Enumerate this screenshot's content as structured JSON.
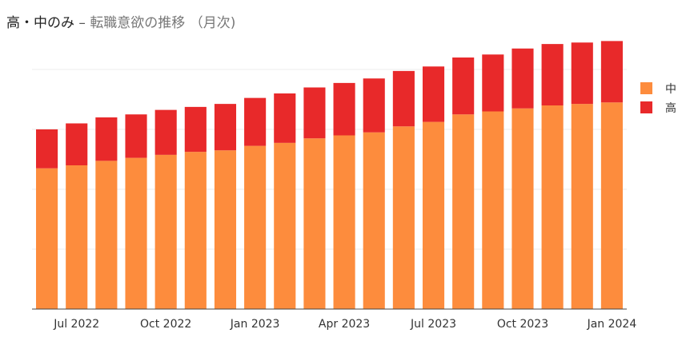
{
  "title": {
    "main": "高・中のみ",
    "separator": "–",
    "subtitle": "転職意欲の推移 （月次)"
  },
  "chart_data": {
    "type": "bar",
    "stacked": true,
    "categories": [
      "2022-06",
      "2022-07",
      "2022-08",
      "2022-09",
      "2022-10",
      "2022-11",
      "2022-12",
      "2023-01",
      "2023-02",
      "2023-03",
      "2023-04",
      "2023-05",
      "2023-06",
      "2023-07",
      "2023-08",
      "2023-09",
      "2023-10",
      "2023-11",
      "2023-12",
      "2024-01"
    ],
    "x_tick_labels": [
      {
        "index": 1,
        "label": "Jul 2022"
      },
      {
        "index": 4,
        "label": "Oct 2022"
      },
      {
        "index": 7,
        "label": "Jan 2023"
      },
      {
        "index": 10,
        "label": "Apr 2023"
      },
      {
        "index": 13,
        "label": "Jul 2023"
      },
      {
        "index": 16,
        "label": "Oct 2023"
      },
      {
        "index": 19,
        "label": "Jan 2024"
      }
    ],
    "series": [
      {
        "name": "中",
        "color": "#fd8c3d",
        "values": [
          47,
          48,
          49.5,
          50.5,
          51.5,
          52.5,
          53,
          54.5,
          55.5,
          57,
          58,
          59,
          61,
          62.5,
          65,
          66,
          67,
          68,
          68.5,
          69
        ]
      },
      {
        "name": "高",
        "color": "#e8292a",
        "values": [
          13,
          14,
          14.5,
          14.5,
          15,
          15,
          15.5,
          16,
          16.5,
          17,
          17.5,
          18,
          18.5,
          18.5,
          19,
          19,
          20,
          20.5,
          20.5,
          20.5
        ]
      }
    ],
    "ylim": [
      0,
      100
    ],
    "grid": true,
    "y_tick_labels_visible": false,
    "legend_position": "right-top"
  }
}
